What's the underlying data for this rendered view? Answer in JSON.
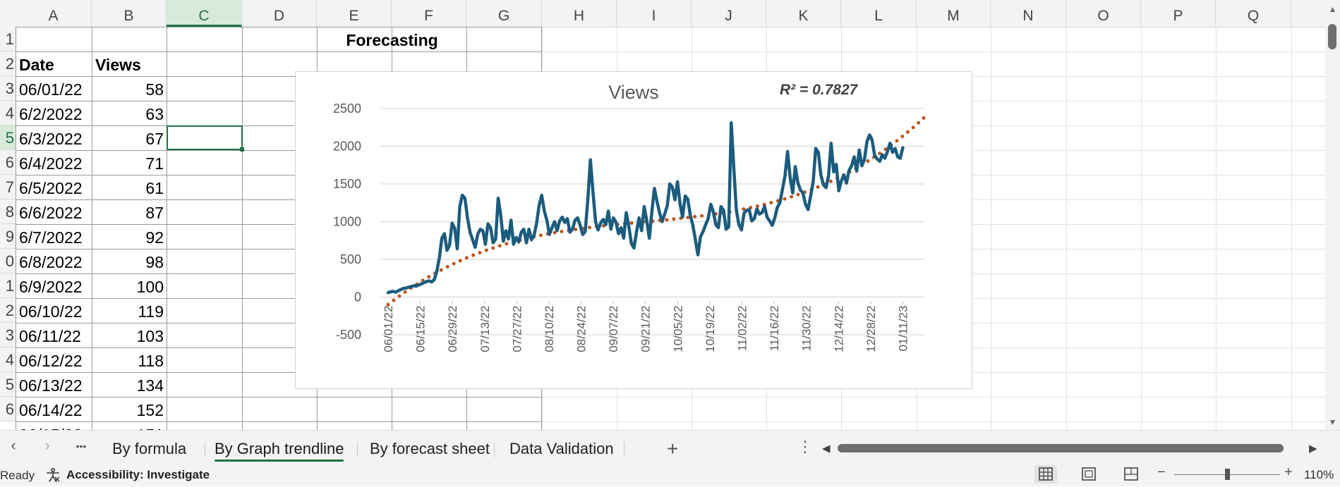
{
  "columns": [
    "A",
    "B",
    "C",
    "D",
    "E",
    "F",
    "G",
    "H",
    "I",
    "J",
    "K",
    "L",
    "M",
    "N",
    "O",
    "P",
    "Q"
  ],
  "selected_column": "C",
  "rows": [
    "1",
    "2",
    "3",
    "4",
    "5",
    "6",
    "7",
    "8",
    "9",
    "0",
    "1",
    "2",
    "3",
    "4",
    "5",
    "6"
  ],
  "selected_row_index": 4,
  "sheet": {
    "title_cell": "Forecasting",
    "header_date": "Date",
    "header_views": "Views",
    "data": [
      {
        "date": "06/01/22",
        "views": "58"
      },
      {
        "date": "6/2/2022",
        "views": "63"
      },
      {
        "date": "6/3/2022",
        "views": "67"
      },
      {
        "date": "6/4/2022",
        "views": "71"
      },
      {
        "date": "6/5/2022",
        "views": "61"
      },
      {
        "date": "6/6/2022",
        "views": "87"
      },
      {
        "date": "6/7/2022",
        "views": "92"
      },
      {
        "date": "6/8/2022",
        "views": "98"
      },
      {
        "date": "6/9/2022",
        "views": "100"
      },
      {
        "date": "06/10/22",
        "views": "119"
      },
      {
        "date": "06/11/22",
        "views": "103"
      },
      {
        "date": "06/12/22",
        "views": "118"
      },
      {
        "date": "06/13/22",
        "views": "134"
      },
      {
        "date": "06/14/22",
        "views": "152"
      }
    ]
  },
  "chart_data": {
    "type": "line",
    "title": "Views",
    "annotation": "R² = 0.7827",
    "ylim": [
      -500,
      2500
    ],
    "yticks": [
      2500,
      2000,
      1500,
      1000,
      500,
      0,
      -500
    ],
    "xticks": [
      "06/01/22",
      "06/15/22",
      "06/29/22",
      "07/13/22",
      "07/27/22",
      "08/10/22",
      "08/24/22",
      "09/07/22",
      "09/21/22",
      "10/05/22",
      "10/19/22",
      "11/02/22",
      "11/16/22",
      "11/30/22",
      "12/14/22",
      "12/28/22",
      "01/11/23"
    ],
    "grid": true,
    "series": [
      {
        "color": "#1b5c7e",
        "x_dates_start": "06/01/22",
        "values": [
          58,
          70,
          75,
          65,
          85,
          100,
          115,
          120,
          130,
          140,
          150,
          145,
          160,
          175,
          190,
          205,
          215,
          200,
          230,
          340,
          520,
          780,
          840,
          620,
          690,
          980,
          910,
          640,
          1200,
          1350,
          1310,
          1050,
          860,
          760,
          660,
          830,
          900,
          880,
          700,
          970,
          920,
          720,
          770,
          1310,
          1080,
          740,
          880,
          770,
          1020,
          700,
          790,
          730,
          860,
          900,
          720,
          900,
          760,
          820,
          980,
          1220,
          1350,
          1140,
          1020,
          830,
          920,
          1000,
          880,
          1010,
          1060,
          990,
          1040,
          860,
          900,
          1020,
          1050,
          950,
          830,
          870,
          1300,
          1820,
          1400,
          1000,
          890,
          980,
          1030,
          960,
          1140,
          900,
          1050,
          990,
          840,
          920,
          780,
          1120,
          940,
          710,
          650,
          860,
          1050,
          880,
          1200,
          1020,
          780,
          1130,
          1440,
          1270,
          1120,
          1000,
          1100,
          1210,
          1500,
          1460,
          1290,
          1530,
          1240,
          1060,
          1340,
          1300,
          1090,
          950,
          760,
          560,
          800,
          870,
          960,
          1040,
          1230,
          1130,
          960,
          920,
          1200,
          1150,
          900,
          930,
          2310,
          1720,
          1150,
          960,
          890,
          1110,
          1150,
          1160,
          1010,
          1040,
          1170,
          1100,
          1120,
          1200,
          1060,
          1010,
          950,
          1050,
          1190,
          1250,
          1430,
          1610,
          1930,
          1580,
          1380,
          1730,
          1520,
          1420,
          1380,
          1230,
          1160,
          1340,
          1530,
          1970,
          1920,
          1620,
          1490,
          1450,
          1610,
          2040,
          1660,
          1760,
          1410,
          1540,
          1620,
          1510,
          1680,
          1740,
          1860,
          1670,
          1950,
          1740,
          1820,
          2060,
          2150,
          2080,
          1880,
          1830,
          1800,
          1890,
          1840,
          1930,
          2040,
          1920,
          1970,
          1860,
          1840,
          1980
        ]
      }
    ],
    "trendline": {
      "type": "polynomial",
      "color": "#c0531b",
      "style": "dotted"
    }
  },
  "tabs": {
    "items": [
      {
        "label": "By formula",
        "active": false
      },
      {
        "label": "By Graph trendline",
        "active": true
      },
      {
        "label": "By forecast sheet",
        "active": false
      },
      {
        "label": "Data Validation",
        "active": false
      }
    ],
    "prev_icon": "‹",
    "next_icon": "›",
    "more_icon": "•••",
    "add_icon": "+",
    "options_icon": "⋮"
  },
  "status": {
    "ready": "Ready",
    "accessibility": "Accessibility: Investigate",
    "zoom": "110%",
    "zoom_minus": "−",
    "zoom_plus": "+"
  },
  "colors": {
    "accent": "#1e7145",
    "series_line": "#1b5c7e",
    "trendline": "#c0531b"
  }
}
